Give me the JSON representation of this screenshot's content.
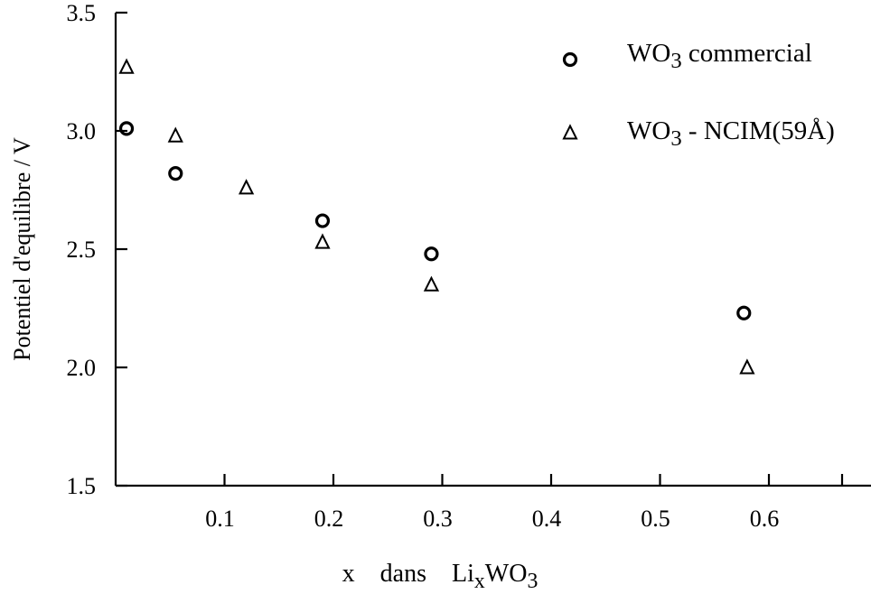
{
  "chart_data": {
    "type": "scatter",
    "title": "",
    "xlabel": {
      "prefix": "x    dans    ",
      "formula": [
        {
          "t": "Li",
          "sub": false
        },
        {
          "t": "x",
          "sub": true
        },
        {
          "t": "WO",
          "sub": false
        },
        {
          "t": "3",
          "sub": true
        }
      ]
    },
    "ylabel": "Potentiel d'equilibre / V",
    "xlim": [
      0,
      0.7
    ],
    "ylim": [
      1.5,
      3.5
    ],
    "x_ticks": [
      0.1,
      0.2,
      0.3,
      0.4,
      0.5,
      0.6
    ],
    "x_tick_labels": [
      "0.1",
      "0.2",
      "0.3",
      "0.4",
      "0.5",
      "0.6"
    ],
    "y_ticks": [
      1.5,
      2.0,
      2.5,
      3.0,
      3.5
    ],
    "y_tick_labels": [
      "1.5",
      "2.0",
      "2.5",
      "3.0",
      "3.5"
    ],
    "legend_position": "top-right",
    "series": [
      {
        "name": [
          {
            "t": "WO",
            "sub": false
          },
          {
            "t": "3",
            "sub": true
          },
          {
            "t": " commercial",
            "sub": false
          }
        ],
        "marker": "circle",
        "points": [
          {
            "x": 0.01,
            "y": 3.01
          },
          {
            "x": 0.055,
            "y": 2.82
          },
          {
            "x": 0.19,
            "y": 2.62
          },
          {
            "x": 0.29,
            "y": 2.48
          },
          {
            "x": 0.577,
            "y": 2.23
          }
        ]
      },
      {
        "name": [
          {
            "t": "WO",
            "sub": false
          },
          {
            "t": "3",
            "sub": true
          },
          {
            "t": " - NCIM(59Å)",
            "sub": false
          }
        ],
        "marker": "triangle",
        "points": [
          {
            "x": 0.01,
            "y": 3.27
          },
          {
            "x": 0.055,
            "y": 2.98
          },
          {
            "x": 0.12,
            "y": 2.76
          },
          {
            "x": 0.19,
            "y": 2.53
          },
          {
            "x": 0.29,
            "y": 2.35
          },
          {
            "x": 0.58,
            "y": 2.0
          }
        ]
      }
    ]
  }
}
